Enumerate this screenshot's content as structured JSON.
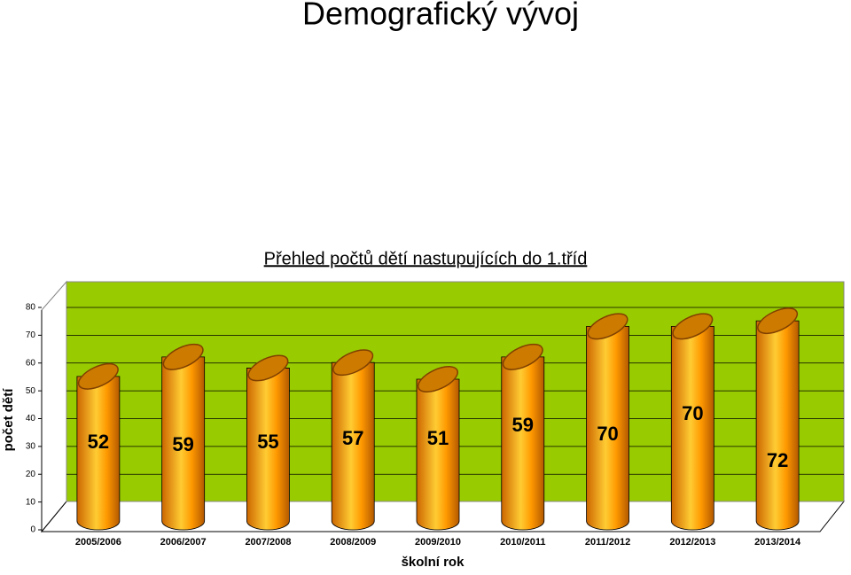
{
  "chart_data": {
    "type": "bar3d",
    "title": "Demografický vývoj",
    "subtitle": "Přehled počtů dětí nastupujících do 1.tříd",
    "x_label": "školní rok",
    "y_label": "počet dětí",
    "categories": [
      "2005/2006",
      "2006/2007",
      "2007/2008",
      "2008/2009",
      "2009/2010",
      "2010/2011",
      "2011/2012",
      "2012/2013",
      "2013/2014"
    ],
    "values": [
      52,
      59,
      55,
      57,
      51,
      59,
      70,
      70,
      72
    ],
    "color": "#ff9900",
    "ylim": [
      0,
      80
    ],
    "yticks": [
      0,
      10,
      20,
      30,
      40,
      50,
      60,
      70,
      80
    ],
    "grid": true,
    "wall_color": "#99cc00"
  }
}
